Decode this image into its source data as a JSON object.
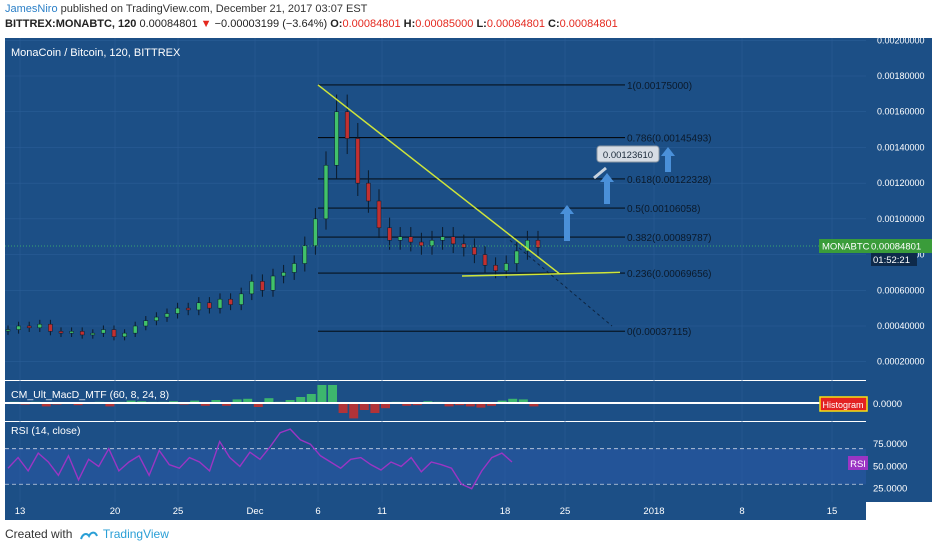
{
  "header": {
    "author": "JamesNiro",
    "published": "published on TradingView.com, December 21, 2017 03:07 EST",
    "symbol": "BITTREX:MONABTC, 120",
    "last": "0.00084801",
    "change_arrow": "▼",
    "change": "−0.00003199 (−3.64%)",
    "o_label": "O:",
    "o": "0.00084801",
    "h_label": "H:",
    "h": "0.00085000",
    "l_label": "L:",
    "l": "0.00084801",
    "c_label": "C:",
    "c": "0.00084801"
  },
  "footer": {
    "created_with": "Created with",
    "brand": "TradingView"
  },
  "colors": {
    "panel": "#1c4f86",
    "panel_dark": "#163e6b",
    "fib_line": "#000000",
    "trend": "#cfe53a",
    "rsi": "#9b35c4",
    "up": "#41c26a",
    "down": "#c23030",
    "arrow": "#4a90d9"
  },
  "chart_data": [
    {
      "type": "candlestick",
      "title": "MonaCoin / Bitcoin, 120, BITTREX",
      "y_ticks": [
        "0.00200000",
        "0.00180000",
        "0.00160000",
        "0.00140000",
        "0.00120000",
        "0.00100000",
        "0.00080000",
        "0.00060000",
        "0.00040000",
        "0.00020000"
      ],
      "y_range": [
        0.0,
        0.0021
      ],
      "x_ticks": [
        "13",
        "20",
        "25",
        "Dec",
        "6",
        "11",
        "18",
        "25",
        "2018",
        "8",
        "15"
      ],
      "price_label": "MONABTC",
      "price_value": "0.00084801",
      "countdown": "01:52:21",
      "callout": "0.00123610",
      "fib_levels": [
        {
          "label": "1(0.00175000)",
          "value": 0.00175
        },
        {
          "label": "0.786(0.00145493)",
          "value": 0.00145493
        },
        {
          "label": "0.618(0.00122328)",
          "value": 0.00122328
        },
        {
          "label": "0.5(0.00106058)",
          "value": 0.00106058
        },
        {
          "label": "0.382(0.00089787)",
          "value": 0.00089787
        },
        {
          "label": "0.236(0.00069656)",
          "value": 0.00069656
        },
        {
          "label": "0(0.00037115)",
          "value": 0.00037115
        }
      ],
      "close_series": [
        0.00038,
        0.0004,
        0.00039,
        0.00041,
        0.00037,
        0.00036,
        0.00037,
        0.00035,
        0.00036,
        0.00038,
        0.00034,
        0.00036,
        0.0004,
        0.00043,
        0.00045,
        0.00047,
        0.0005,
        0.00049,
        0.00053,
        0.0005,
        0.00055,
        0.00052,
        0.00058,
        0.00065,
        0.0006,
        0.00068,
        0.0007,
        0.00075,
        0.00085,
        0.001,
        0.0013,
        0.0016,
        0.00145,
        0.0012,
        0.0011,
        0.00095,
        0.00088,
        0.0009,
        0.00087,
        0.00085,
        0.00088,
        0.0009,
        0.00086,
        0.00084,
        0.0008,
        0.00074,
        0.00071,
        0.00075,
        0.00082,
        0.00088,
        0.00084
      ]
    },
    {
      "type": "histogram",
      "title": "CM_Ult_MacD_MTF (60, 8, 24, 8)",
      "y_ticks": [
        "0.0000"
      ],
      "badge": "Histogram"
    },
    {
      "type": "line",
      "title": "RSI (14, close)",
      "y_ticks": [
        "75.0000",
        "50.0000",
        "25.0000"
      ],
      "y_range": [
        10,
        100
      ],
      "badge": "RSI",
      "values": [
        48,
        60,
        45,
        65,
        55,
        40,
        62,
        35,
        58,
        50,
        70,
        45,
        55,
        62,
        40,
        68,
        52,
        48,
        60,
        55,
        45,
        78,
        60,
        50,
        66,
        58,
        72,
        88,
        92,
        80,
        75,
        62,
        55,
        48,
        58,
        60,
        52,
        46,
        55,
        50,
        60,
        44,
        55,
        52,
        48,
        30,
        25,
        45,
        60,
        65,
        55
      ]
    }
  ]
}
